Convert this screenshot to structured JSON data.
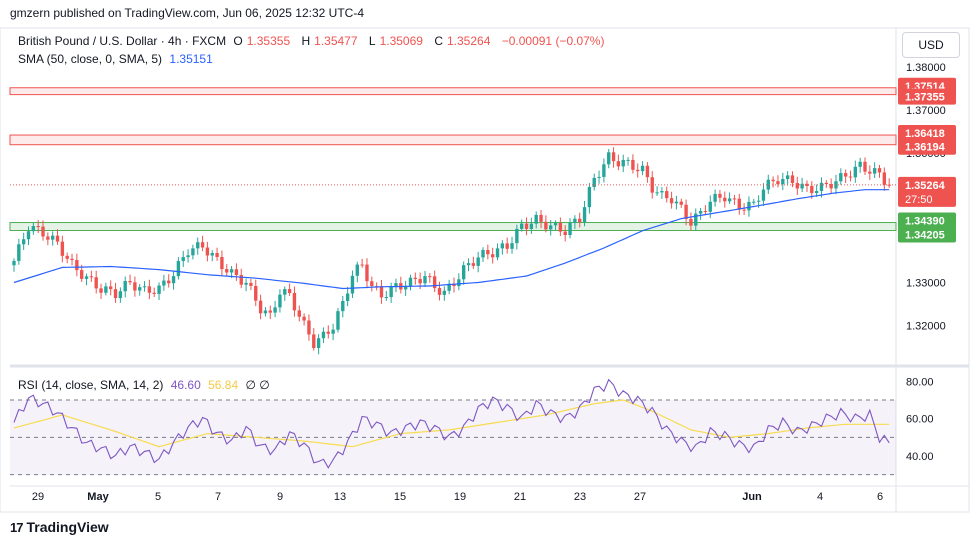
{
  "header": {
    "published": "gmzern published on TradingView.com, Jun 06, 2025 12:32 UTC-4"
  },
  "legend": {
    "symbol": "British Pound / U.S. Dollar · 4h · FXCM",
    "o_label": "O",
    "o": "1.35355",
    "h_label": "H",
    "h": "1.35477",
    "l_label": "L",
    "l": "1.35069",
    "c_label": "C",
    "c": "1.35264",
    "change": "−0.00091 (−0.07%)",
    "sma_label": "SMA (50, close, 0, SMA, 5)",
    "sma_value": "1.35151",
    "rsi_label": "RSI (14, close, SMA, 14, 2)",
    "rsi_value": "46.60",
    "rsi_sma_value": "56.84",
    "rsi_extra": "∅ ∅"
  },
  "currency_button": "USD",
  "footer": {
    "brand": "TradingView",
    "logo": "17"
  },
  "colors": {
    "up": "#26a69a",
    "down": "#ef5350",
    "sma": "#2962ff",
    "rsi": "#7e57c2",
    "rsi_sma": "#f7dc50",
    "resistance": "#ef5350",
    "support": "#4caf50"
  },
  "chart_data": [
    {
      "type": "candlestick",
      "title": "British Pound / U.S. Dollar · 4h · FXCM",
      "xlabels": [
        "29",
        "May",
        "5",
        "7",
        "9",
        "13",
        "15",
        "19",
        "21",
        "23",
        "27",
        "Jun",
        "4",
        "6"
      ],
      "y_ticks": [
        "1.38000",
        "1.37000",
        "1.36000",
        "1.33000",
        "1.32000"
      ],
      "ylim": [
        1.3125,
        1.3825
      ],
      "current_price": "1.35264",
      "countdown": "27:50",
      "levels": {
        "resistance_zones": [
          [
            "1.37514",
            "1.37355"
          ],
          [
            "1.36418",
            "1.36194"
          ]
        ],
        "support_zone": [
          "1.34390",
          "1.34205"
        ]
      },
      "close_anchors": [
        [
          0,
          1.335
        ],
        [
          3,
          1.343
        ],
        [
          6,
          1.3415
        ],
        [
          9,
          1.339
        ],
        [
          12,
          1.334
        ],
        [
          15,
          1.331
        ],
        [
          18,
          1.3285
        ],
        [
          21,
          1.3275
        ],
        [
          24,
          1.33
        ],
        [
          27,
          1.328
        ],
        [
          30,
          1.3285
        ],
        [
          33,
          1.332
        ],
        [
          36,
          1.3375
        ],
        [
          39,
          1.3385
        ],
        [
          42,
          1.335
        ],
        [
          45,
          1.332
        ],
        [
          48,
          1.33
        ],
        [
          51,
          1.324
        ],
        [
          53,
          1.322
        ],
        [
          55,
          1.328
        ],
        [
          57,
          1.327
        ],
        [
          60,
          1.32
        ],
        [
          62,
          1.316
        ],
        [
          64,
          1.3175
        ],
        [
          66,
          1.32
        ],
        [
          68,
          1.325
        ],
        [
          70,
          1.332
        ],
        [
          72,
          1.334
        ],
        [
          74,
          1.329
        ],
        [
          76,
          1.327
        ],
        [
          79,
          1.329
        ],
        [
          82,
          1.33
        ],
        [
          85,
          1.3315
        ],
        [
          87,
          1.329
        ],
        [
          89,
          1.3275
        ],
        [
          91,
          1.33
        ],
        [
          93,
          1.333
        ],
        [
          96,
          1.336
        ],
        [
          99,
          1.337
        ],
        [
          102,
          1.3385
        ],
        [
          105,
          1.343
        ],
        [
          108,
          1.3445
        ],
        [
          111,
          1.343
        ],
        [
          114,
          1.342
        ],
        [
          117,
          1.345
        ],
        [
          120,
          1.354
        ],
        [
          123,
          1.359
        ],
        [
          125,
          1.358
        ],
        [
          127,
          1.3575
        ],
        [
          130,
          1.356
        ],
        [
          132,
          1.352
        ],
        [
          134,
          1.35
        ],
        [
          136,
          1.3495
        ],
        [
          138,
          1.347
        ],
        [
          140,
          1.344
        ],
        [
          142,
          1.346
        ],
        [
          144,
          1.349
        ],
        [
          147,
          1.35
        ],
        [
          150,
          1.3475
        ],
        [
          153,
          1.348
        ],
        [
          155,
          1.352
        ],
        [
          158,
          1.354
        ],
        [
          161,
          1.3535
        ],
        [
          164,
          1.3515
        ],
        [
          167,
          1.352
        ],
        [
          170,
          1.3535
        ],
        [
          173,
          1.3555
        ],
        [
          175,
          1.357
        ],
        [
          177,
          1.356
        ],
        [
          179,
          1.355
        ],
        [
          181,
          1.3526
        ]
      ],
      "sma_anchors": [
        [
          0,
          1.33
        ],
        [
          10,
          1.3335
        ],
        [
          20,
          1.3337
        ],
        [
          30,
          1.333
        ],
        [
          40,
          1.3318
        ],
        [
          50,
          1.331
        ],
        [
          60,
          1.3298
        ],
        [
          68,
          1.3286
        ],
        [
          76,
          1.329
        ],
        [
          86,
          1.3292
        ],
        [
          96,
          1.33
        ],
        [
          106,
          1.3315
        ],
        [
          114,
          1.3345
        ],
        [
          122,
          1.338
        ],
        [
          130,
          1.342
        ],
        [
          138,
          1.3448
        ],
        [
          146,
          1.3463
        ],
        [
          154,
          1.3478
        ],
        [
          162,
          1.3494
        ],
        [
          170,
          1.3508
        ],
        [
          176,
          1.3515
        ],
        [
          181,
          1.3515
        ]
      ]
    },
    {
      "type": "line",
      "title": "RSI (14, close, SMA, 14, 2)",
      "y_ticks": [
        "80.00",
        "60.00",
        "40.00"
      ],
      "ylim": [
        25,
        85
      ],
      "bands": [
        70,
        50,
        30
      ],
      "rsi_anchors": [
        [
          0,
          58
        ],
        [
          3,
          71
        ],
        [
          6,
          68
        ],
        [
          9,
          63
        ],
        [
          12,
          55
        ],
        [
          15,
          47
        ],
        [
          18,
          44
        ],
        [
          21,
          40
        ],
        [
          24,
          45
        ],
        [
          27,
          42
        ],
        [
          30,
          38
        ],
        [
          33,
          47
        ],
        [
          36,
          55
        ],
        [
          39,
          60
        ],
        [
          42,
          52
        ],
        [
          45,
          48
        ],
        [
          48,
          55
        ],
        [
          51,
          45
        ],
        [
          54,
          43
        ],
        [
          57,
          52
        ],
        [
          60,
          46
        ],
        [
          63,
          36
        ],
        [
          66,
          37
        ],
        [
          69,
          47
        ],
        [
          72,
          60
        ],
        [
          75,
          57
        ],
        [
          78,
          52
        ],
        [
          81,
          55
        ],
        [
          84,
          58
        ],
        [
          87,
          55
        ],
        [
          90,
          50
        ],
        [
          93,
          55
        ],
        [
          96,
          65
        ],
        [
          99,
          70
        ],
        [
          102,
          66
        ],
        [
          105,
          60
        ],
        [
          108,
          68
        ],
        [
          111,
          63
        ],
        [
          114,
          60
        ],
        [
          117,
          65
        ],
        [
          120,
          75
        ],
        [
          123,
          79
        ],
        [
          126,
          73
        ],
        [
          129,
          70
        ],
        [
          132,
          64
        ],
        [
          135,
          54
        ],
        [
          138,
          48
        ],
        [
          141,
          44
        ],
        [
          144,
          53
        ],
        [
          147,
          51
        ],
        [
          150,
          46
        ],
        [
          153,
          44
        ],
        [
          156,
          54
        ],
        [
          159,
          58
        ],
        [
          162,
          53
        ],
        [
          165,
          56
        ],
        [
          168,
          60
        ],
        [
          171,
          63
        ],
        [
          174,
          60
        ],
        [
          177,
          62
        ],
        [
          179,
          50
        ],
        [
          181,
          47
        ]
      ],
      "sma_anchors": [
        [
          0,
          55
        ],
        [
          10,
          62
        ],
        [
          20,
          54
        ],
        [
          30,
          45
        ],
        [
          40,
          52
        ],
        [
          50,
          50
        ],
        [
          60,
          48
        ],
        [
          70,
          45
        ],
        [
          80,
          52
        ],
        [
          90,
          54
        ],
        [
          100,
          58
        ],
        [
          110,
          62
        ],
        [
          120,
          68
        ],
        [
          126,
          70
        ],
        [
          132,
          64
        ],
        [
          140,
          54
        ],
        [
          148,
          50
        ],
        [
          156,
          52
        ],
        [
          164,
          55
        ],
        [
          172,
          57
        ],
        [
          181,
          57
        ]
      ]
    }
  ]
}
